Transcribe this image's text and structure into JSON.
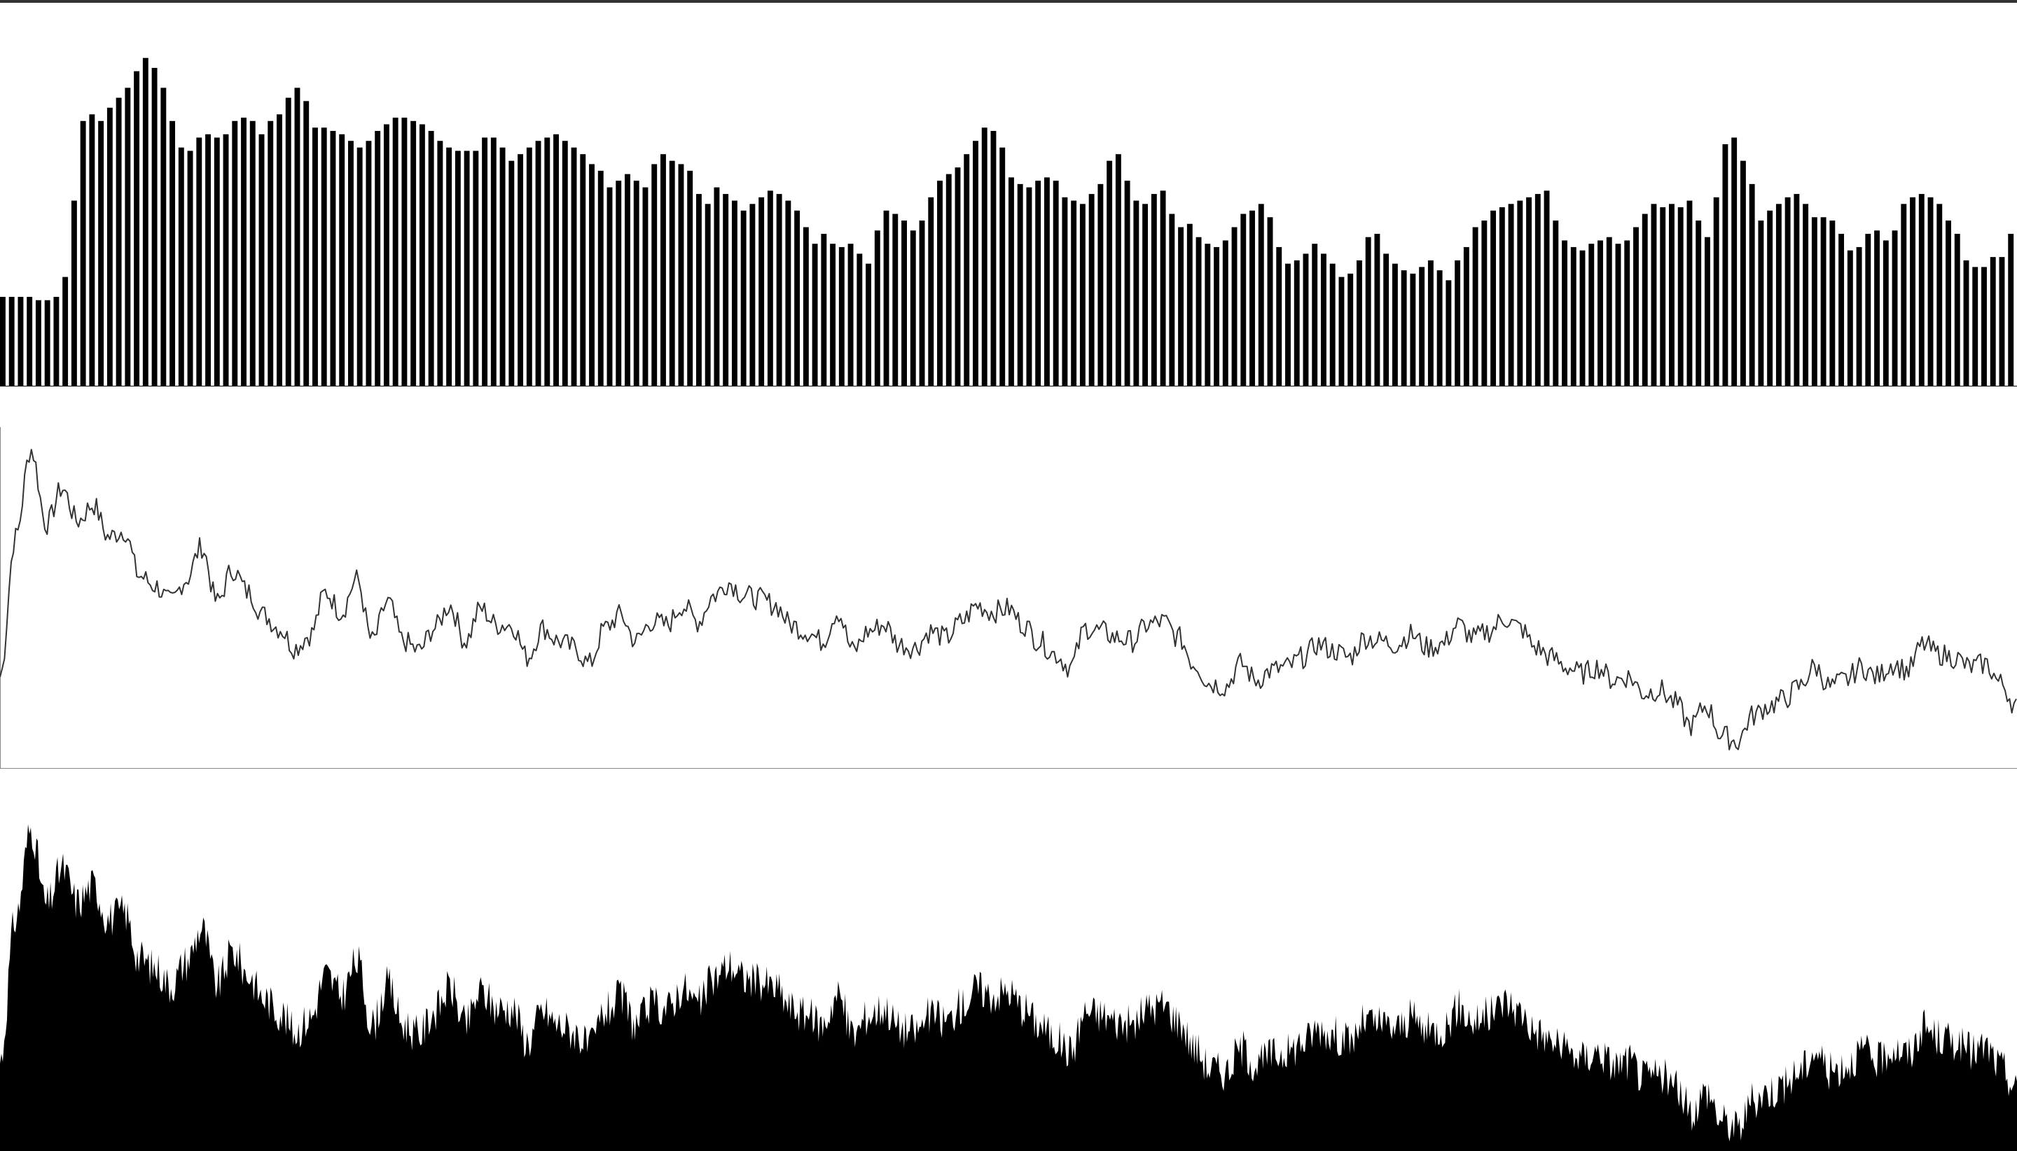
{
  "colors": {
    "background": "#ffffff",
    "top_border": "#333333",
    "bar_fill": "#000000",
    "line_stroke": "#333333",
    "area_fill": "#000000",
    "frame": "#888888"
  },
  "chart_data": [
    {
      "type": "bar",
      "title": "",
      "xlabel": "",
      "ylabel": "",
      "ylim": [
        0,
        1
      ],
      "grid": false,
      "legend": "none",
      "values": [
        0.27,
        0.27,
        0.27,
        0.27,
        0.26,
        0.26,
        0.27,
        0.33,
        0.56,
        0.8,
        0.82,
        0.8,
        0.84,
        0.87,
        0.9,
        0.95,
        0.99,
        0.96,
        0.9,
        0.8,
        0.72,
        0.71,
        0.75,
        0.76,
        0.75,
        0.76,
        0.8,
        0.81,
        0.8,
        0.76,
        0.8,
        0.82,
        0.87,
        0.9,
        0.86,
        0.78,
        0.78,
        0.77,
        0.76,
        0.74,
        0.72,
        0.74,
        0.77,
        0.79,
        0.81,
        0.81,
        0.8,
        0.79,
        0.77,
        0.74,
        0.72,
        0.71,
        0.71,
        0.71,
        0.75,
        0.75,
        0.72,
        0.68,
        0.7,
        0.72,
        0.74,
        0.75,
        0.76,
        0.74,
        0.72,
        0.7,
        0.67,
        0.65,
        0.6,
        0.62,
        0.64,
        0.62,
        0.6,
        0.67,
        0.7,
        0.68,
        0.67,
        0.65,
        0.58,
        0.55,
        0.6,
        0.58,
        0.56,
        0.53,
        0.55,
        0.57,
        0.59,
        0.58,
        0.56,
        0.53,
        0.48,
        0.43,
        0.46,
        0.43,
        0.42,
        0.43,
        0.4,
        0.37,
        0.47,
        0.53,
        0.52,
        0.5,
        0.47,
        0.5,
        0.57,
        0.62,
        0.64,
        0.66,
        0.7,
        0.74,
        0.78,
        0.77,
        0.72,
        0.63,
        0.61,
        0.6,
        0.62,
        0.63,
        0.62,
        0.57,
        0.56,
        0.55,
        0.58,
        0.61,
        0.68,
        0.7,
        0.62,
        0.56,
        0.55,
        0.58,
        0.59,
        0.52,
        0.48,
        0.49,
        0.45,
        0.43,
        0.42,
        0.44,
        0.48,
        0.52,
        0.53,
        0.55,
        0.51,
        0.42,
        0.37,
        0.38,
        0.4,
        0.43,
        0.4,
        0.37,
        0.33,
        0.34,
        0.38,
        0.45,
        0.46,
        0.4,
        0.37,
        0.35,
        0.34,
        0.36,
        0.38,
        0.35,
        0.32,
        0.38,
        0.42,
        0.48,
        0.5,
        0.53,
        0.54,
        0.55,
        0.56,
        0.57,
        0.58,
        0.59,
        0.5,
        0.44,
        0.42,
        0.41,
        0.43,
        0.44,
        0.45,
        0.43,
        0.44,
        0.48,
        0.52,
        0.55,
        0.54,
        0.55,
        0.54,
        0.56,
        0.5,
        0.45,
        0.57,
        0.73,
        0.75,
        0.68,
        0.61,
        0.5,
        0.53,
        0.55,
        0.57,
        0.58,
        0.55,
        0.51,
        0.51,
        0.5,
        0.46,
        0.41,
        0.42,
        0.46,
        0.47,
        0.44,
        0.47,
        0.55,
        0.57,
        0.58,
        0.57,
        0.55,
        0.5,
        0.46,
        0.38,
        0.36,
        0.36,
        0.39,
        0.39,
        0.46
      ]
    },
    {
      "type": "line",
      "title": "",
      "xlabel": "",
      "ylabel": "",
      "ylim": [
        0,
        1
      ],
      "grid": false,
      "legend": "none",
      "values": [
        0.27,
        0.7,
        0.97,
        0.74,
        0.85,
        0.75,
        0.8,
        0.7,
        0.72,
        0.58,
        0.55,
        0.5,
        0.57,
        0.67,
        0.5,
        0.6,
        0.53,
        0.46,
        0.42,
        0.36,
        0.4,
        0.53,
        0.47,
        0.57,
        0.38,
        0.5,
        0.38,
        0.35,
        0.42,
        0.49,
        0.38,
        0.48,
        0.43,
        0.43,
        0.33,
        0.42,
        0.38,
        0.36,
        0.31,
        0.42,
        0.46,
        0.38,
        0.44,
        0.43,
        0.49,
        0.44,
        0.52,
        0.56,
        0.52,
        0.51,
        0.49,
        0.43,
        0.41,
        0.38,
        0.47,
        0.35,
        0.41,
        0.43,
        0.37,
        0.36,
        0.41,
        0.39,
        0.44,
        0.49,
        0.47,
        0.48,
        0.43,
        0.38,
        0.34,
        0.3,
        0.42,
        0.41,
        0.39,
        0.38,
        0.43,
        0.44,
        0.39,
        0.31,
        0.25,
        0.24,
        0.31,
        0.26,
        0.29,
        0.3,
        0.33,
        0.37,
        0.35,
        0.33,
        0.39,
        0.38,
        0.37,
        0.4,
        0.36,
        0.37,
        0.43,
        0.39,
        0.41,
        0.45,
        0.42,
        0.36,
        0.33,
        0.3,
        0.28,
        0.3,
        0.26,
        0.27,
        0.22,
        0.23,
        0.19,
        0.12,
        0.18,
        0.09,
        0.07,
        0.15,
        0.18,
        0.2,
        0.24,
        0.3,
        0.24,
        0.26,
        0.3,
        0.27,
        0.31,
        0.29,
        0.37,
        0.34,
        0.33,
        0.3,
        0.31,
        0.25,
        0.18
      ]
    },
    {
      "type": "area",
      "title": "",
      "xlabel": "",
      "ylabel": "",
      "ylim": [
        0,
        1
      ],
      "grid": false,
      "legend": "none",
      "values": [
        0.27,
        0.7,
        0.97,
        0.74,
        0.85,
        0.75,
        0.8,
        0.7,
        0.72,
        0.58,
        0.55,
        0.5,
        0.57,
        0.67,
        0.5,
        0.6,
        0.53,
        0.46,
        0.42,
        0.36,
        0.4,
        0.53,
        0.47,
        0.57,
        0.38,
        0.5,
        0.38,
        0.35,
        0.42,
        0.49,
        0.38,
        0.48,
        0.43,
        0.43,
        0.33,
        0.42,
        0.38,
        0.36,
        0.31,
        0.42,
        0.46,
        0.38,
        0.44,
        0.43,
        0.49,
        0.44,
        0.52,
        0.56,
        0.52,
        0.51,
        0.49,
        0.43,
        0.41,
        0.38,
        0.47,
        0.35,
        0.41,
        0.43,
        0.37,
        0.36,
        0.41,
        0.39,
        0.44,
        0.49,
        0.47,
        0.48,
        0.43,
        0.38,
        0.34,
        0.3,
        0.42,
        0.41,
        0.39,
        0.38,
        0.43,
        0.44,
        0.39,
        0.31,
        0.25,
        0.24,
        0.31,
        0.26,
        0.29,
        0.3,
        0.33,
        0.37,
        0.35,
        0.33,
        0.39,
        0.38,
        0.37,
        0.4,
        0.36,
        0.37,
        0.43,
        0.39,
        0.41,
        0.45,
        0.42,
        0.36,
        0.33,
        0.3,
        0.28,
        0.3,
        0.26,
        0.27,
        0.22,
        0.23,
        0.19,
        0.12,
        0.18,
        0.09,
        0.07,
        0.15,
        0.18,
        0.2,
        0.24,
        0.3,
        0.24,
        0.26,
        0.3,
        0.27,
        0.31,
        0.29,
        0.37,
        0.34,
        0.33,
        0.3,
        0.31,
        0.25,
        0.18
      ]
    }
  ]
}
